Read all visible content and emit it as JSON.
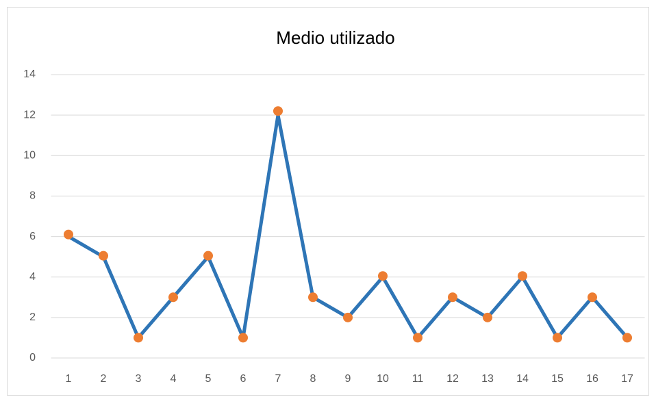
{
  "chart_data": {
    "type": "line",
    "title": "Medio utilizado",
    "categories": [
      "1",
      "2",
      "3",
      "4",
      "5",
      "6",
      "7",
      "8",
      "9",
      "10",
      "11",
      "12",
      "13",
      "14",
      "15",
      "16",
      "17"
    ],
    "series": [
      {
        "color": "#2e75b6",
        "style": "line",
        "values": [
          6,
          5,
          1,
          3,
          5,
          1,
          12,
          3,
          2,
          4,
          1,
          3,
          2,
          4,
          1,
          3,
          1
        ]
      },
      {
        "color": "#ed7d31",
        "style": "marker",
        "values": [
          6.1,
          5.05,
          1,
          3,
          5.05,
          1,
          12.2,
          3,
          2,
          4.05,
          1,
          3,
          2,
          4.05,
          1,
          3,
          1
        ]
      }
    ],
    "ylim": [
      0,
      14
    ],
    "yticks": [
      0,
      2,
      4,
      6,
      8,
      10,
      12,
      14
    ],
    "grid": true
  }
}
